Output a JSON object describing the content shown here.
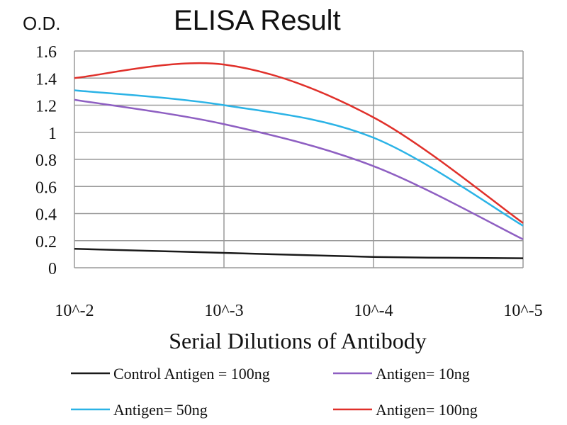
{
  "chart_data": {
    "type": "line",
    "title": "ELISA Result",
    "ylabel": "O.D.",
    "xlabel": "Serial Dilutions of Antibody",
    "categories": [
      "10^-2",
      "10^-3",
      "10^-4",
      "10^-5"
    ],
    "ylim": [
      0,
      1.6
    ],
    "yticks": [
      "0",
      "0.2",
      "0.4",
      "0.6",
      "0.8",
      "1",
      "1.2",
      "1.4",
      "1.6"
    ],
    "grid": true,
    "legend_position": "bottom",
    "series": [
      {
        "name": "Control Antigen = 100ng",
        "color": "#1a1a1a",
        "values": [
          0.14,
          0.11,
          0.08,
          0.07
        ]
      },
      {
        "name": "Antigen= 10ng",
        "color": "#8e5fc2",
        "values": [
          1.24,
          1.06,
          0.75,
          0.21
        ]
      },
      {
        "name": "Antigen= 50ng",
        "color": "#2bb3e6",
        "values": [
          1.31,
          1.2,
          0.96,
          0.31
        ]
      },
      {
        "name": "Antigen= 100ng",
        "color": "#e0302a",
        "values": [
          1.4,
          1.5,
          1.11,
          0.33
        ]
      }
    ]
  }
}
